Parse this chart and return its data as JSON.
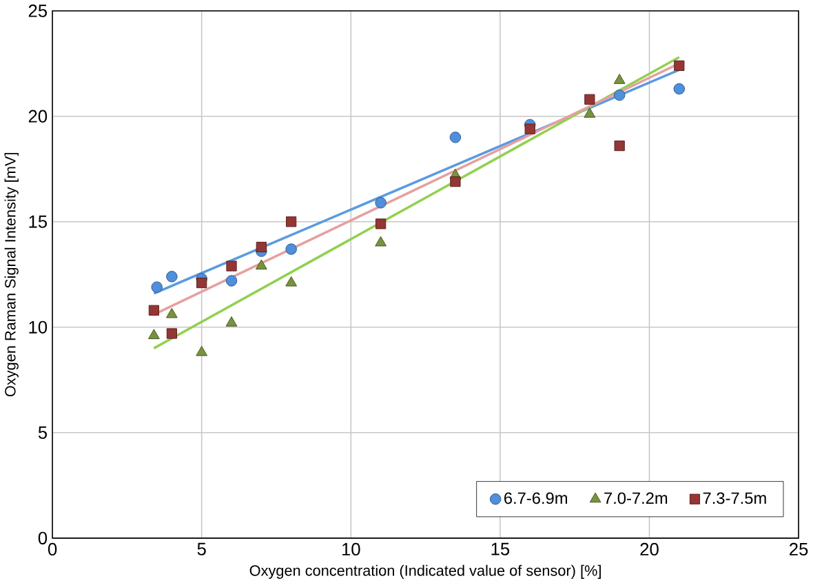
{
  "chart_data": {
    "type": "scatter",
    "xlabel": "Oxygen concentration (Indicated value of sensor) [%]",
    "ylabel": "Oxygen Raman Signal Intensity [mV]",
    "xlim": [
      0,
      25
    ],
    "ylim": [
      0,
      25
    ],
    "xticks": [
      0,
      5,
      10,
      15,
      20,
      25
    ],
    "yticks": [
      0,
      5,
      10,
      15,
      20,
      25
    ],
    "grid": true,
    "legend": "bottom right",
    "series": [
      {
        "name": "6.7-6.9m",
        "color": "#4f8fdc",
        "marker": "circle",
        "x": [
          3.5,
          4,
          5,
          6,
          7,
          8,
          11,
          13.5,
          16,
          19,
          21
        ],
        "values": [
          11.9,
          12.4,
          12.3,
          12.2,
          13.6,
          13.7,
          15.9,
          19.0,
          19.6,
          21.0,
          21.3
        ]
      },
      {
        "name": "7.0-7.2m",
        "color": "#77933c",
        "marker": "triangle",
        "x": [
          3.4,
          4,
          5,
          6,
          7,
          8,
          11,
          13.5,
          18,
          19
        ],
        "values": [
          9.6,
          10.6,
          8.8,
          10.2,
          12.9,
          12.1,
          14.0,
          17.2,
          20.1,
          21.7
        ]
      },
      {
        "name": "7.3-7.5m",
        "color": "#943634",
        "marker": "square",
        "x": [
          3.4,
          4,
          5,
          6,
          7,
          8,
          11,
          13.5,
          16,
          18,
          19,
          21
        ],
        "values": [
          10.8,
          9.7,
          12.1,
          12.9,
          13.8,
          15.0,
          14.9,
          16.9,
          19.4,
          20.8,
          18.6,
          22.4
        ]
      },
      {
        "type": "line",
        "color": "#5b9be0",
        "marker": "none",
        "x": [
          3.4,
          21
        ],
        "values": [
          11.6,
          22.2
        ]
      },
      {
        "type": "line",
        "color": "#92d050",
        "marker": "none",
        "x": [
          3.4,
          21
        ],
        "values": [
          9.0,
          22.8
        ]
      },
      {
        "type": "line",
        "color": "#e6a0a0",
        "marker": "none",
        "x": [
          3.4,
          21
        ],
        "values": [
          10.6,
          22.5
        ]
      }
    ]
  }
}
